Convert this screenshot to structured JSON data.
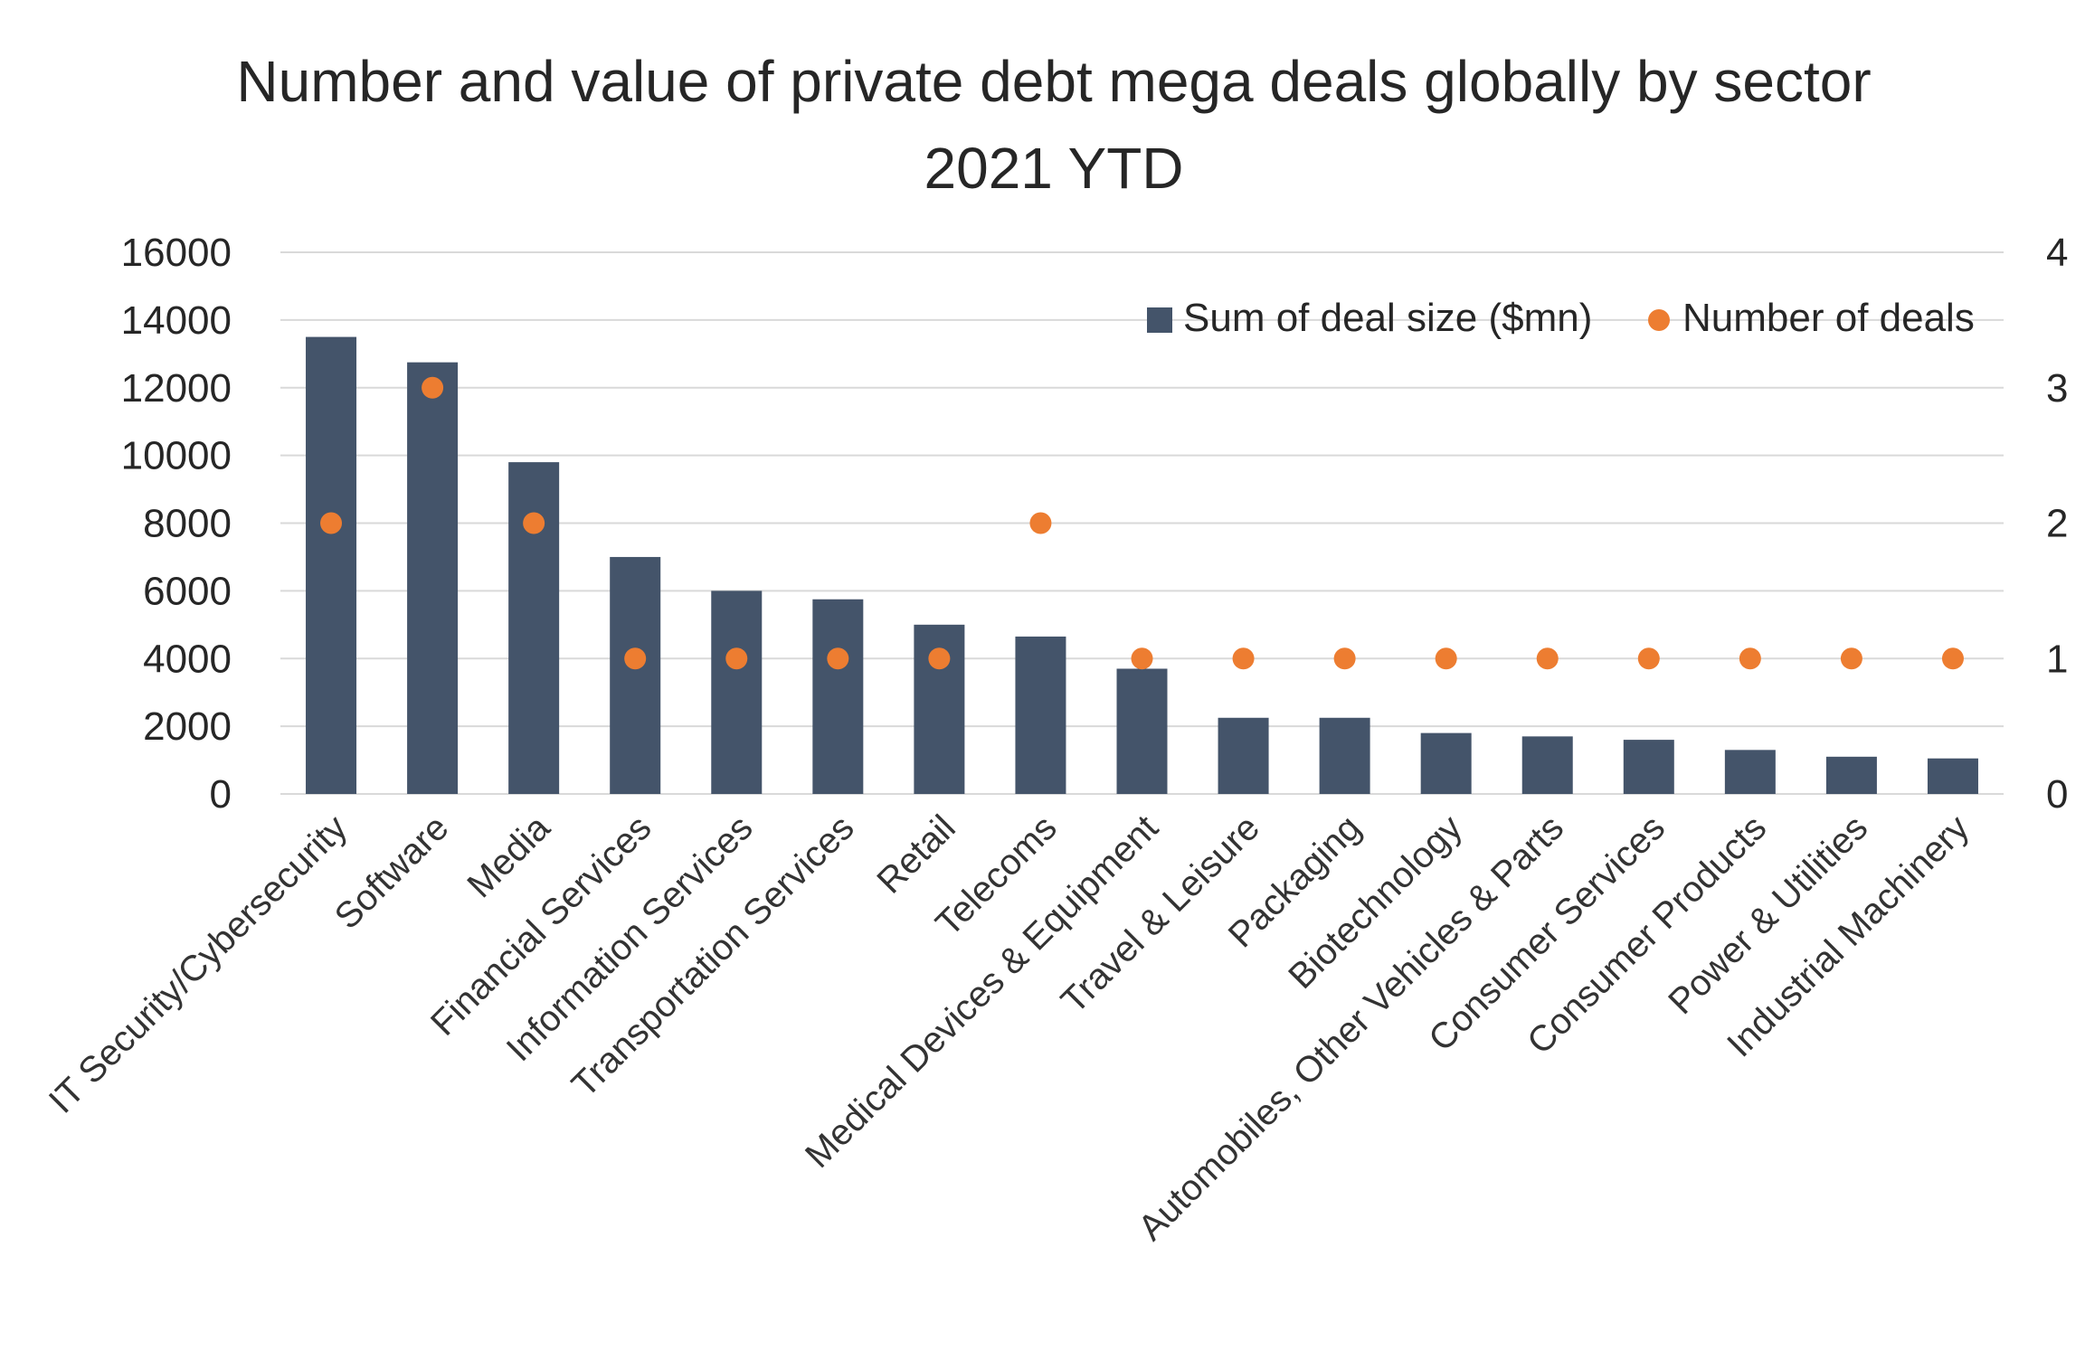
{
  "chart_data": {
    "type": "bar",
    "title": "Number and value of private debt mega deals globally by sector",
    "subtitle": "2021 YTD",
    "categories": [
      "IT Security/Cybersecurity",
      "Software",
      "Media",
      "Financial Services",
      "Information Services",
      "Transportation Services",
      "Retail",
      "Telecoms",
      "Medical Devices & Equipment",
      "Travel & Leisure",
      "Packaging",
      "Biotechnology",
      "Automobiles, Other Vehicles & Parts",
      "Consumer Services",
      "Consumer Products",
      "Power & Utilities",
      "Industrial Machinery"
    ],
    "series": [
      {
        "name": "Sum of deal size ($mn)",
        "type": "bar",
        "axis": "left",
        "color": "#44546a",
        "values": [
          13500,
          12750,
          9800,
          7000,
          6000,
          5750,
          5000,
          4650,
          3700,
          2250,
          2250,
          1800,
          1700,
          1600,
          1300,
          1100,
          1050
        ]
      },
      {
        "name": "Number of deals",
        "type": "scatter",
        "axis": "right",
        "color": "#ed7d31",
        "values": [
          2,
          3,
          2,
          1,
          1,
          1,
          1,
          2,
          1,
          1,
          1,
          1,
          1,
          1,
          1,
          1,
          1
        ]
      }
    ],
    "ylim": [
      0,
      16000
    ],
    "y_ticks": [
      "0",
      "2000",
      "4000",
      "6000",
      "8000",
      "10000",
      "12000",
      "14000",
      "16000"
    ],
    "y2lim": [
      0,
      4
    ],
    "y2_ticks": [
      "0",
      "1",
      "2",
      "3",
      "4"
    ],
    "xlabel": "",
    "ylabel": "",
    "grid": true,
    "legend": "top-right"
  }
}
